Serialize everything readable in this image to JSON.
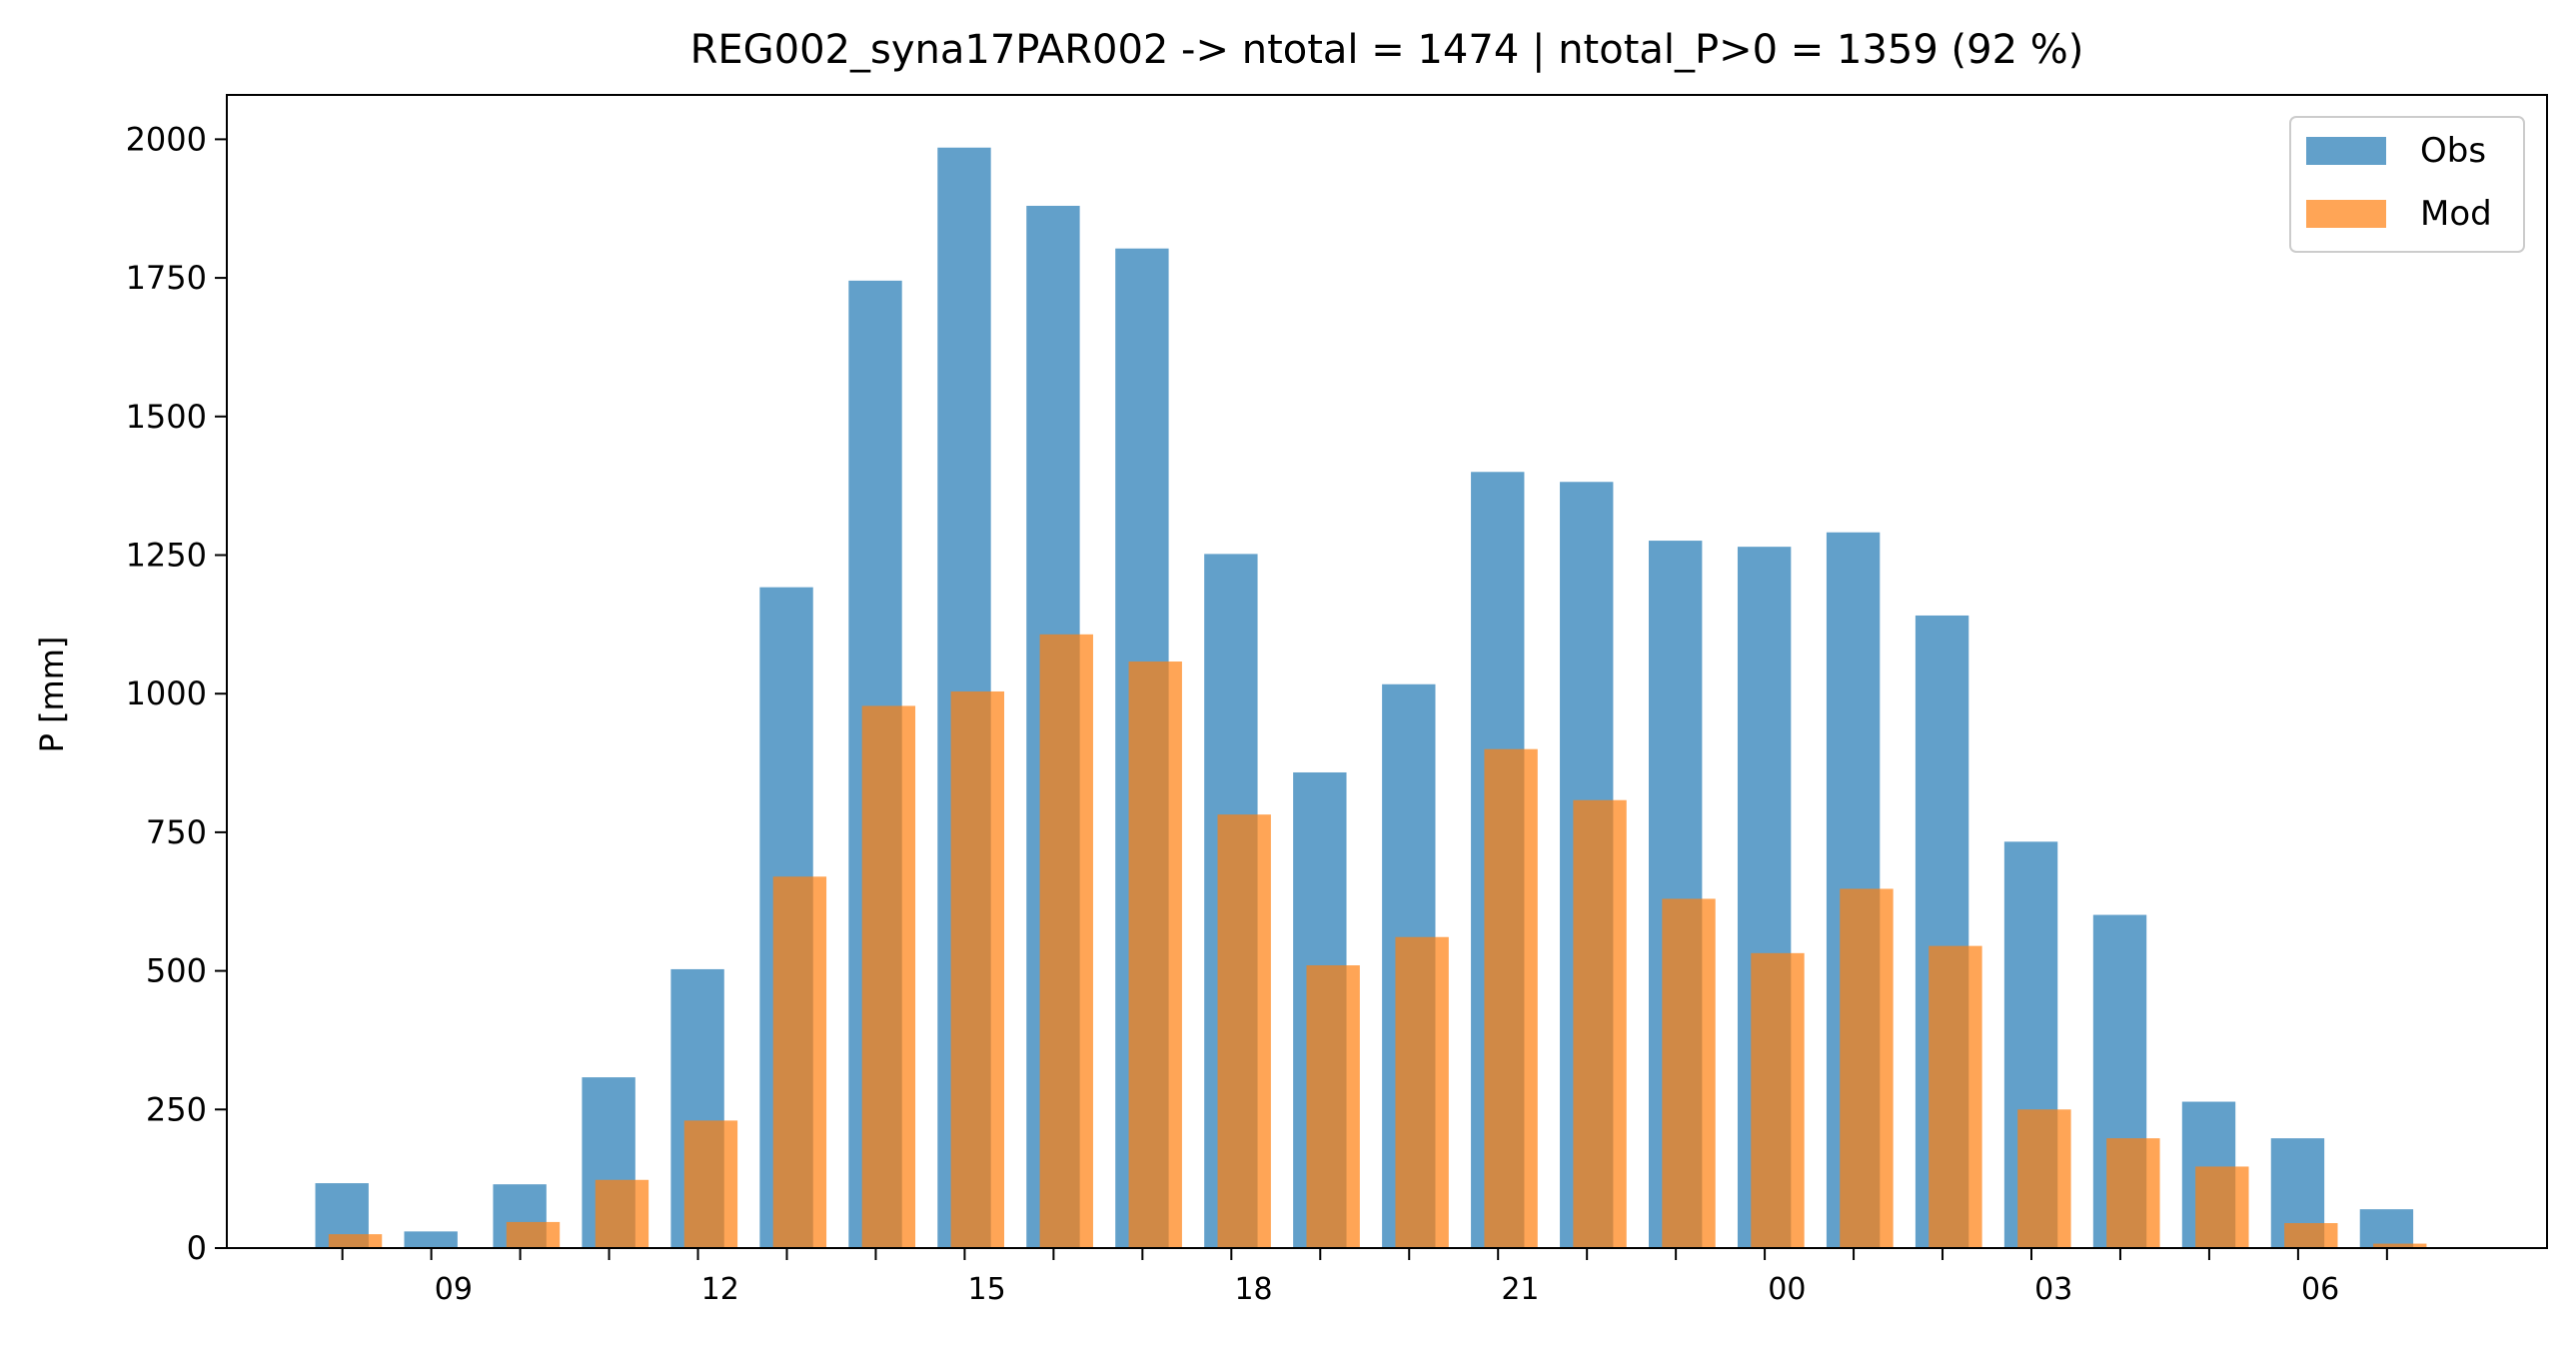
{
  "chart_data": {
    "type": "bar",
    "title": "REG002_syna17PAR002 -> ntotal = 1474 | ntotal_P>0 = 1359 (92 %)",
    "xlabel": "",
    "ylabel": "P [mm]",
    "ylim": [
      0,
      2080
    ],
    "yticks": [
      0,
      250,
      500,
      750,
      1000,
      1250,
      1500,
      1750,
      2000
    ],
    "hours": [
      8,
      9,
      10,
      11,
      12,
      13,
      14,
      15,
      16,
      17,
      18,
      19,
      20,
      21,
      22,
      23,
      24,
      25,
      26,
      27,
      28,
      29,
      30,
      31
    ],
    "xticks": [
      {
        "hour": 9,
        "label": "09"
      },
      {
        "hour": 12,
        "label": "12"
      },
      {
        "hour": 15,
        "label": "15"
      },
      {
        "hour": 18,
        "label": "18"
      },
      {
        "hour": 21,
        "label": "21"
      },
      {
        "hour": 24,
        "label": "00"
      },
      {
        "hour": 27,
        "label": "03"
      },
      {
        "hour": 30,
        "label": "06"
      }
    ],
    "series": [
      {
        "name": "Obs",
        "color": "#1f77b4",
        "values": [
          117,
          30,
          115,
          308,
          503,
          1192,
          1745,
          1985,
          1880,
          1803,
          1252,
          858,
          1017,
          1400,
          1382,
          1276,
          1265,
          1291,
          1141,
          733,
          601,
          264,
          198,
          70
        ]
      },
      {
        "name": "Mod",
        "color": "#ff7f0e",
        "values": [
          25,
          0,
          47,
          123,
          230,
          670,
          978,
          1004,
          1107,
          1058,
          782,
          510,
          561,
          900,
          808,
          630,
          532,
          648,
          545,
          250,
          198,
          147,
          45,
          8
        ]
      }
    ],
    "legend": "top-right",
    "grid": false
  }
}
